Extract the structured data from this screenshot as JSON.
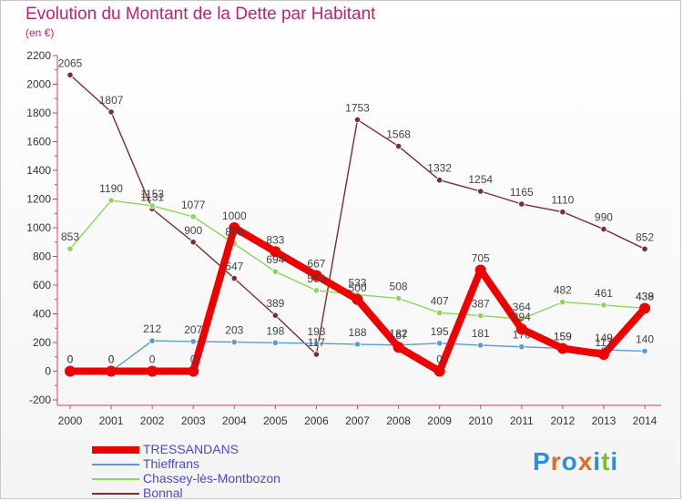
{
  "title": "Evolution du Montant de la Dette par Habitant",
  "subtitle": "(en €)",
  "logo": {
    "letters": [
      "P",
      "r",
      "o",
      "x",
      "i",
      "t",
      "i"
    ],
    "colors": [
      "#2e8fd8",
      "#e66b1e",
      "#2e8fd8",
      "#e66b1e",
      "#2e8fd8",
      "#7cba2e",
      "#2e8fd8"
    ]
  },
  "chart_data": {
    "type": "line",
    "x": [
      "2000",
      "2001",
      "2002",
      "2003",
      "2004",
      "2005",
      "2006",
      "2007",
      "2008",
      "2009",
      "2010",
      "2011",
      "2012",
      "2013",
      "2014"
    ],
    "ylim": [
      -200,
      2200
    ],
    "yticks": [
      "-200",
      "0",
      "200",
      "400",
      "600",
      "800",
      "1000",
      "1200",
      "1400",
      "1600",
      "1800",
      "2000",
      "2200"
    ],
    "grid": false,
    "legend_position": "bottom-left",
    "series": [
      {
        "name": "TRESSANDANS",
        "color": "#ee0000",
        "values": [
          0,
          0,
          0,
          0,
          1000,
          833,
          667,
          500,
          167,
          0,
          705,
          294,
          159,
          117,
          438
        ],
        "labels": [
          "0",
          "0",
          "0",
          "0",
          "1000",
          "833",
          "667",
          "500",
          "167",
          "0",
          "705",
          "294",
          "159",
          "117",
          "438"
        ]
      },
      {
        "name": "Thieffrans",
        "color": "#5b9bd5",
        "values": [
          0,
          0,
          212,
          207,
          203,
          198,
          193,
          188,
          182,
          195,
          181,
          170,
          159,
          149,
          140
        ],
        "labels": [
          "0",
          "0",
          "212",
          "207",
          "203",
          "198",
          "193",
          "188",
          "182",
          "195",
          "181",
          "170",
          "159",
          "149",
          "140"
        ]
      },
      {
        "name": "Chassey-lès-Montbozon",
        "color": "#8fd45a",
        "values": [
          853,
          1190,
          1153,
          1077,
          888,
          694,
          563,
          533,
          508,
          407,
          387,
          364,
          482,
          461,
          439
        ],
        "labels": [
          "853",
          "1190",
          "1153",
          "1077",
          "888",
          "694",
          "563",
          "533",
          "508",
          "407",
          "387",
          "364",
          "482",
          "461",
          "439"
        ]
      },
      {
        "name": "Bonnal",
        "color": "#7a2e2e",
        "values": [
          2065,
          1807,
          1131,
          900,
          647,
          389,
          117,
          1753,
          1568,
          1332,
          1254,
          1165,
          1110,
          990,
          852
        ],
        "labels": [
          "2065",
          "1807",
          "1131",
          "900",
          "647",
          "389",
          "117",
          "1753",
          "1568",
          "1332",
          "1254",
          "1165",
          "1110",
          "990",
          "852"
        ]
      }
    ]
  }
}
